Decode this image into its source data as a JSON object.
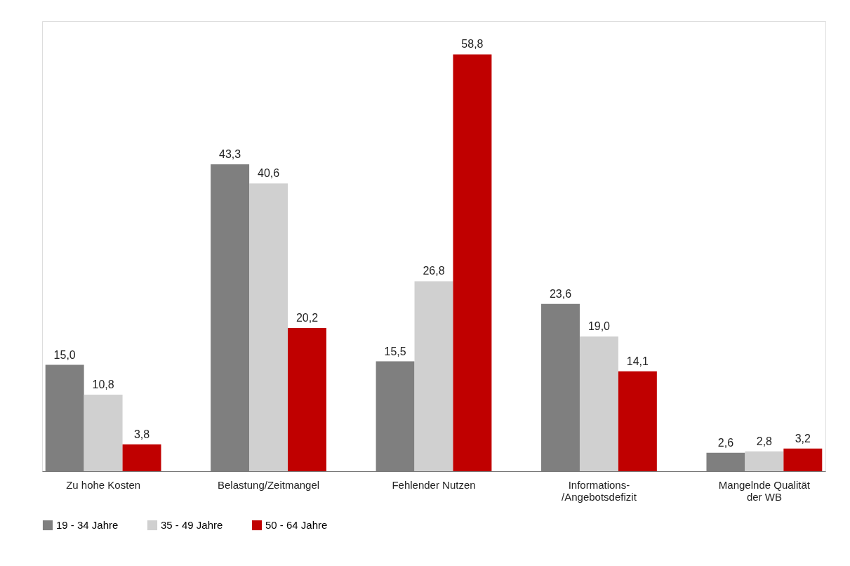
{
  "chart_data": {
    "type": "bar",
    "categories": [
      "Zu hohe Kosten",
      "Belastung/Zeitmangel",
      "Fehlender Nutzen",
      "Informations-\n/Angebotsdefizit",
      "Mangelnde Qualität\nder WB"
    ],
    "series": [
      {
        "name": "19 - 34 Jahre",
        "color": "#7f7f7f",
        "values": [
          15.0,
          43.3,
          15.5,
          23.6,
          2.6
        ],
        "value_labels": [
          "15,0",
          "43,3",
          "15,5",
          "23,6",
          "2,6"
        ]
      },
      {
        "name": "35 - 49 Jahre",
        "color": "#d0d0d0",
        "values": [
          10.8,
          40.6,
          26.8,
          19.0,
          2.8
        ],
        "value_labels": [
          "10,8",
          "40,6",
          "26,8",
          "19,0",
          "2,8"
        ]
      },
      {
        "name": "50 - 64 Jahre",
        "color": "#c00000",
        "values": [
          3.8,
          20.2,
          58.8,
          14.1,
          3.2
        ],
        "value_labels": [
          "3,8",
          "20,2",
          "58,8",
          "14,1",
          "3,2"
        ]
      }
    ],
    "legend": "bottom",
    "grid": false,
    "tick_labels": "x"
  }
}
